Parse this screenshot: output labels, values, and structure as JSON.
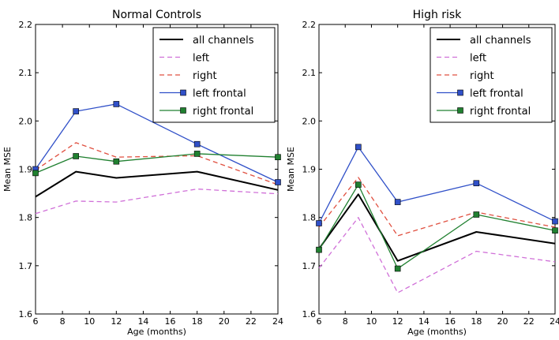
{
  "chart_data": [
    {
      "type": "line",
      "title": "Normal Controls",
      "xlabel": "Age (months)",
      "ylabel": "Mean MSE",
      "xlim": [
        6,
        24
      ],
      "ylim": [
        1.6,
        2.2
      ],
      "xticks": [
        "6",
        "8",
        "10",
        "12",
        "14",
        "16",
        "18",
        "20",
        "22",
        "24"
      ],
      "yticks": [
        "1.6",
        "1.7",
        "1.8",
        "1.9",
        "2.0",
        "2.1",
        "2.2"
      ],
      "legend_position": "top-right",
      "x": [
        6,
        9,
        12,
        18,
        24
      ],
      "series": [
        {
          "name": "all channels",
          "color": "#000000",
          "style": "solid",
          "marker": "none",
          "values": [
            1.843,
            1.895,
            1.882,
            1.895,
            1.857
          ]
        },
        {
          "name": "left",
          "color": "#d070d8",
          "style": "dashed",
          "marker": "none",
          "values": [
            1.808,
            1.834,
            1.832,
            1.859,
            1.849
          ]
        },
        {
          "name": "right",
          "color": "#e05040",
          "style": "dashed",
          "marker": "none",
          "values": [
            1.898,
            1.955,
            1.925,
            1.928,
            1.868
          ]
        },
        {
          "name": "left frontal",
          "color": "#3050c8",
          "style": "solid",
          "marker": "square",
          "values": [
            1.9,
            2.02,
            2.035,
            1.952,
            1.873
          ]
        },
        {
          "name": "right frontal",
          "color": "#208030",
          "style": "solid",
          "marker": "square",
          "values": [
            1.892,
            1.927,
            1.916,
            1.932,
            1.925
          ]
        }
      ]
    },
    {
      "type": "line",
      "title": "High risk",
      "xlabel": "Age (months)",
      "ylabel": "Mean MSE",
      "xlim": [
        6,
        24
      ],
      "ylim": [
        1.6,
        2.2
      ],
      "xticks": [
        "6",
        "8",
        "10",
        "12",
        "14",
        "16",
        "18",
        "20",
        "22",
        "24"
      ],
      "yticks": [
        "1.6",
        "1.7",
        "1.8",
        "1.9",
        "2.0",
        "2.1",
        "2.2"
      ],
      "legend_position": "top-right",
      "x": [
        6,
        9,
        12,
        18,
        24
      ],
      "series": [
        {
          "name": "all channels",
          "color": "#000000",
          "style": "solid",
          "marker": "none",
          "values": [
            1.735,
            1.848,
            1.71,
            1.77,
            1.746
          ]
        },
        {
          "name": "left",
          "color": "#d070d8",
          "style": "dashed",
          "marker": "none",
          "values": [
            1.695,
            1.8,
            1.644,
            1.73,
            1.708
          ]
        },
        {
          "name": "right",
          "color": "#e05040",
          "style": "dashed",
          "marker": "none",
          "values": [
            1.78,
            1.883,
            1.762,
            1.811,
            1.78
          ]
        },
        {
          "name": "left frontal",
          "color": "#3050c8",
          "style": "solid",
          "marker": "square",
          "values": [
            1.788,
            1.946,
            1.832,
            1.871,
            1.792
          ]
        },
        {
          "name": "right frontal",
          "color": "#208030",
          "style": "solid",
          "marker": "square",
          "values": [
            1.733,
            1.868,
            1.694,
            1.806,
            1.773
          ]
        }
      ]
    }
  ]
}
